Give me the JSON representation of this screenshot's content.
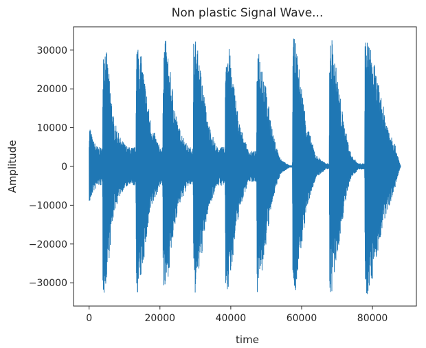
{
  "chart_data": {
    "type": "line",
    "title": "Non plastic Signal Wave...",
    "xlabel": "time",
    "ylabel": "Amplitude",
    "xlim": [
      -4400,
      92400
    ],
    "ylim": [
      -36000,
      36000
    ],
    "xticks": [
      0,
      20000,
      40000,
      60000,
      80000
    ],
    "xtick_labels": [
      "0",
      "20000",
      "40000",
      "60000",
      "80000"
    ],
    "yticks": [
      -30000,
      -20000,
      -10000,
      0,
      10000,
      20000,
      30000
    ],
    "ytick_labels": [
      "−30000",
      "−20000",
      "−10000",
      "0",
      "10000",
      "20000",
      "30000"
    ],
    "grid": false,
    "legend": "none",
    "series": [
      {
        "color": "#1f77b4",
        "envelope": {
          "x": [
            0,
            200,
            1000,
            2500,
            3800,
            3900,
            4500,
            5500,
            7000,
            9000,
            11000,
            13200,
            13300,
            14000,
            15500,
            17500,
            20000,
            20800,
            20900,
            21600,
            23000,
            25000,
            28000,
            29400,
            29500,
            30200,
            31500,
            33500,
            36000,
            38400,
            38500,
            39200,
            40500,
            42500,
            45000,
            47300,
            47400,
            48500,
            50000,
            52000,
            54000,
            56500,
            57400,
            57500,
            58200,
            59500,
            61500,
            64000,
            66800,
            67800,
            67900,
            68600,
            70000,
            72000,
            74000,
            76000,
            77800,
            77900,
            78600,
            80000,
            82000,
            84000,
            86000,
            87500,
            88000
          ],
          "upper": [
            9000,
            11000,
            7000,
            5000,
            5000,
            33000,
            33000,
            25000,
            12000,
            7000,
            5000,
            5000,
            33000,
            33000,
            24000,
            11000,
            5000,
            5000,
            33000,
            33000,
            24000,
            11000,
            5000,
            5000,
            33000,
            33000,
            25000,
            12000,
            5000,
            5000,
            33000,
            33000,
            24000,
            11000,
            4000,
            4000,
            33000,
            30000,
            20000,
            8000,
            2000,
            300,
            300,
            33000,
            33000,
            24000,
            11000,
            3000,
            800,
            800,
            33000,
            33000,
            24000,
            11000,
            3000,
            800,
            800,
            33000,
            33000,
            29000,
            20000,
            12000,
            7000,
            1500,
            0
          ],
          "lower": [
            -9000,
            -10000,
            -7000,
            -5000,
            -5000,
            -33000,
            -33000,
            -25000,
            -12000,
            -7000,
            -5000,
            -5000,
            -33000,
            -33000,
            -24000,
            -11000,
            -5000,
            -5000,
            -33000,
            -33000,
            -24000,
            -11000,
            -5000,
            -5000,
            -33000,
            -33000,
            -25000,
            -12000,
            -5000,
            -5000,
            -33000,
            -33000,
            -24000,
            -11000,
            -4000,
            -4000,
            -33000,
            -30000,
            -20000,
            -8000,
            -2000,
            -300,
            -300,
            -33000,
            -33000,
            -24000,
            -11000,
            -3000,
            -800,
            -800,
            -33000,
            -33000,
            -24000,
            -11000,
            -3000,
            -800,
            -800,
            -33000,
            -33000,
            -29000,
            -20000,
            -12000,
            -7000,
            -1500,
            0
          ]
        }
      }
    ]
  }
}
